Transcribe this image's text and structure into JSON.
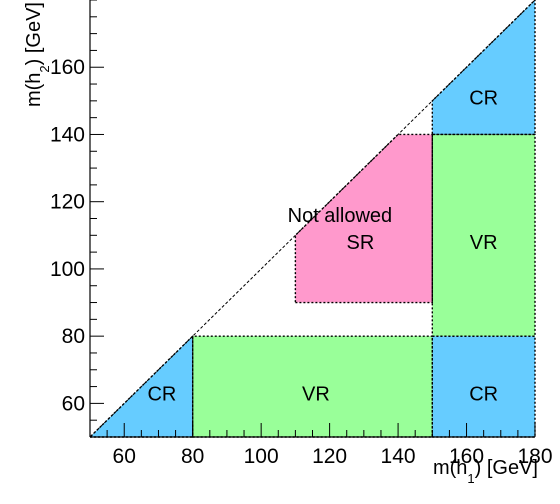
{
  "chart_data": {
    "type": "region-map",
    "xlim": [
      50,
      180
    ],
    "ylim": [
      50,
      180
    ],
    "x_ticks": [
      60,
      80,
      100,
      120,
      140,
      160,
      180
    ],
    "y_ticks": [
      60,
      80,
      100,
      120,
      140,
      160
    ],
    "xlabel": {
      "main": "m(h",
      "sub": "1",
      "post": ") [GeV]"
    },
    "ylabel": {
      "main": "m(h",
      "sub": "2",
      "post": ") [GeV]"
    },
    "colors": {
      "SR": "#ff99cc",
      "VR": "#99ff99",
      "CR": "#66ccff"
    },
    "diagonal": {
      "from": [
        50,
        50
      ],
      "to": [
        180,
        180
      ],
      "style": "dashed"
    },
    "annotation": {
      "text": "Not allowed",
      "at": [
        123,
        116
      ]
    },
    "regions": [
      {
        "name": "SR",
        "label": "SR",
        "polygon": [
          [
            110,
            90
          ],
          [
            150,
            90
          ],
          [
            150,
            140
          ],
          [
            140,
            140
          ],
          [
            110,
            110
          ]
        ],
        "label_at": [
          129,
          108
        ]
      },
      {
        "name": "VR",
        "label": "VR",
        "polygon": [
          [
            150,
            80
          ],
          [
            180,
            80
          ],
          [
            180,
            140
          ],
          [
            150,
            140
          ]
        ],
        "label_at": [
          165,
          108
        ]
      },
      {
        "name": "VR",
        "label": "VR",
        "polygon": [
          [
            80,
            50
          ],
          [
            150,
            50
          ],
          [
            150,
            80
          ],
          [
            80,
            80
          ]
        ],
        "label_at": [
          116,
          63
        ]
      },
      {
        "name": "CR",
        "label": "CR",
        "polygon": [
          [
            150,
            140
          ],
          [
            180,
            140
          ],
          [
            180,
            180
          ],
          [
            150,
            150
          ]
        ],
        "label_at": [
          165,
          151
        ]
      },
      {
        "name": "CR",
        "label": "CR",
        "polygon": [
          [
            150,
            50
          ],
          [
            180,
            50
          ],
          [
            180,
            80
          ],
          [
            150,
            80
          ]
        ],
        "label_at": [
          165,
          63
        ]
      },
      {
        "name": "CR",
        "label": "CR",
        "polygon": [
          [
            50,
            50
          ],
          [
            80,
            50
          ],
          [
            80,
            80
          ]
        ],
        "label_at": [
          71,
          63
        ]
      }
    ]
  }
}
